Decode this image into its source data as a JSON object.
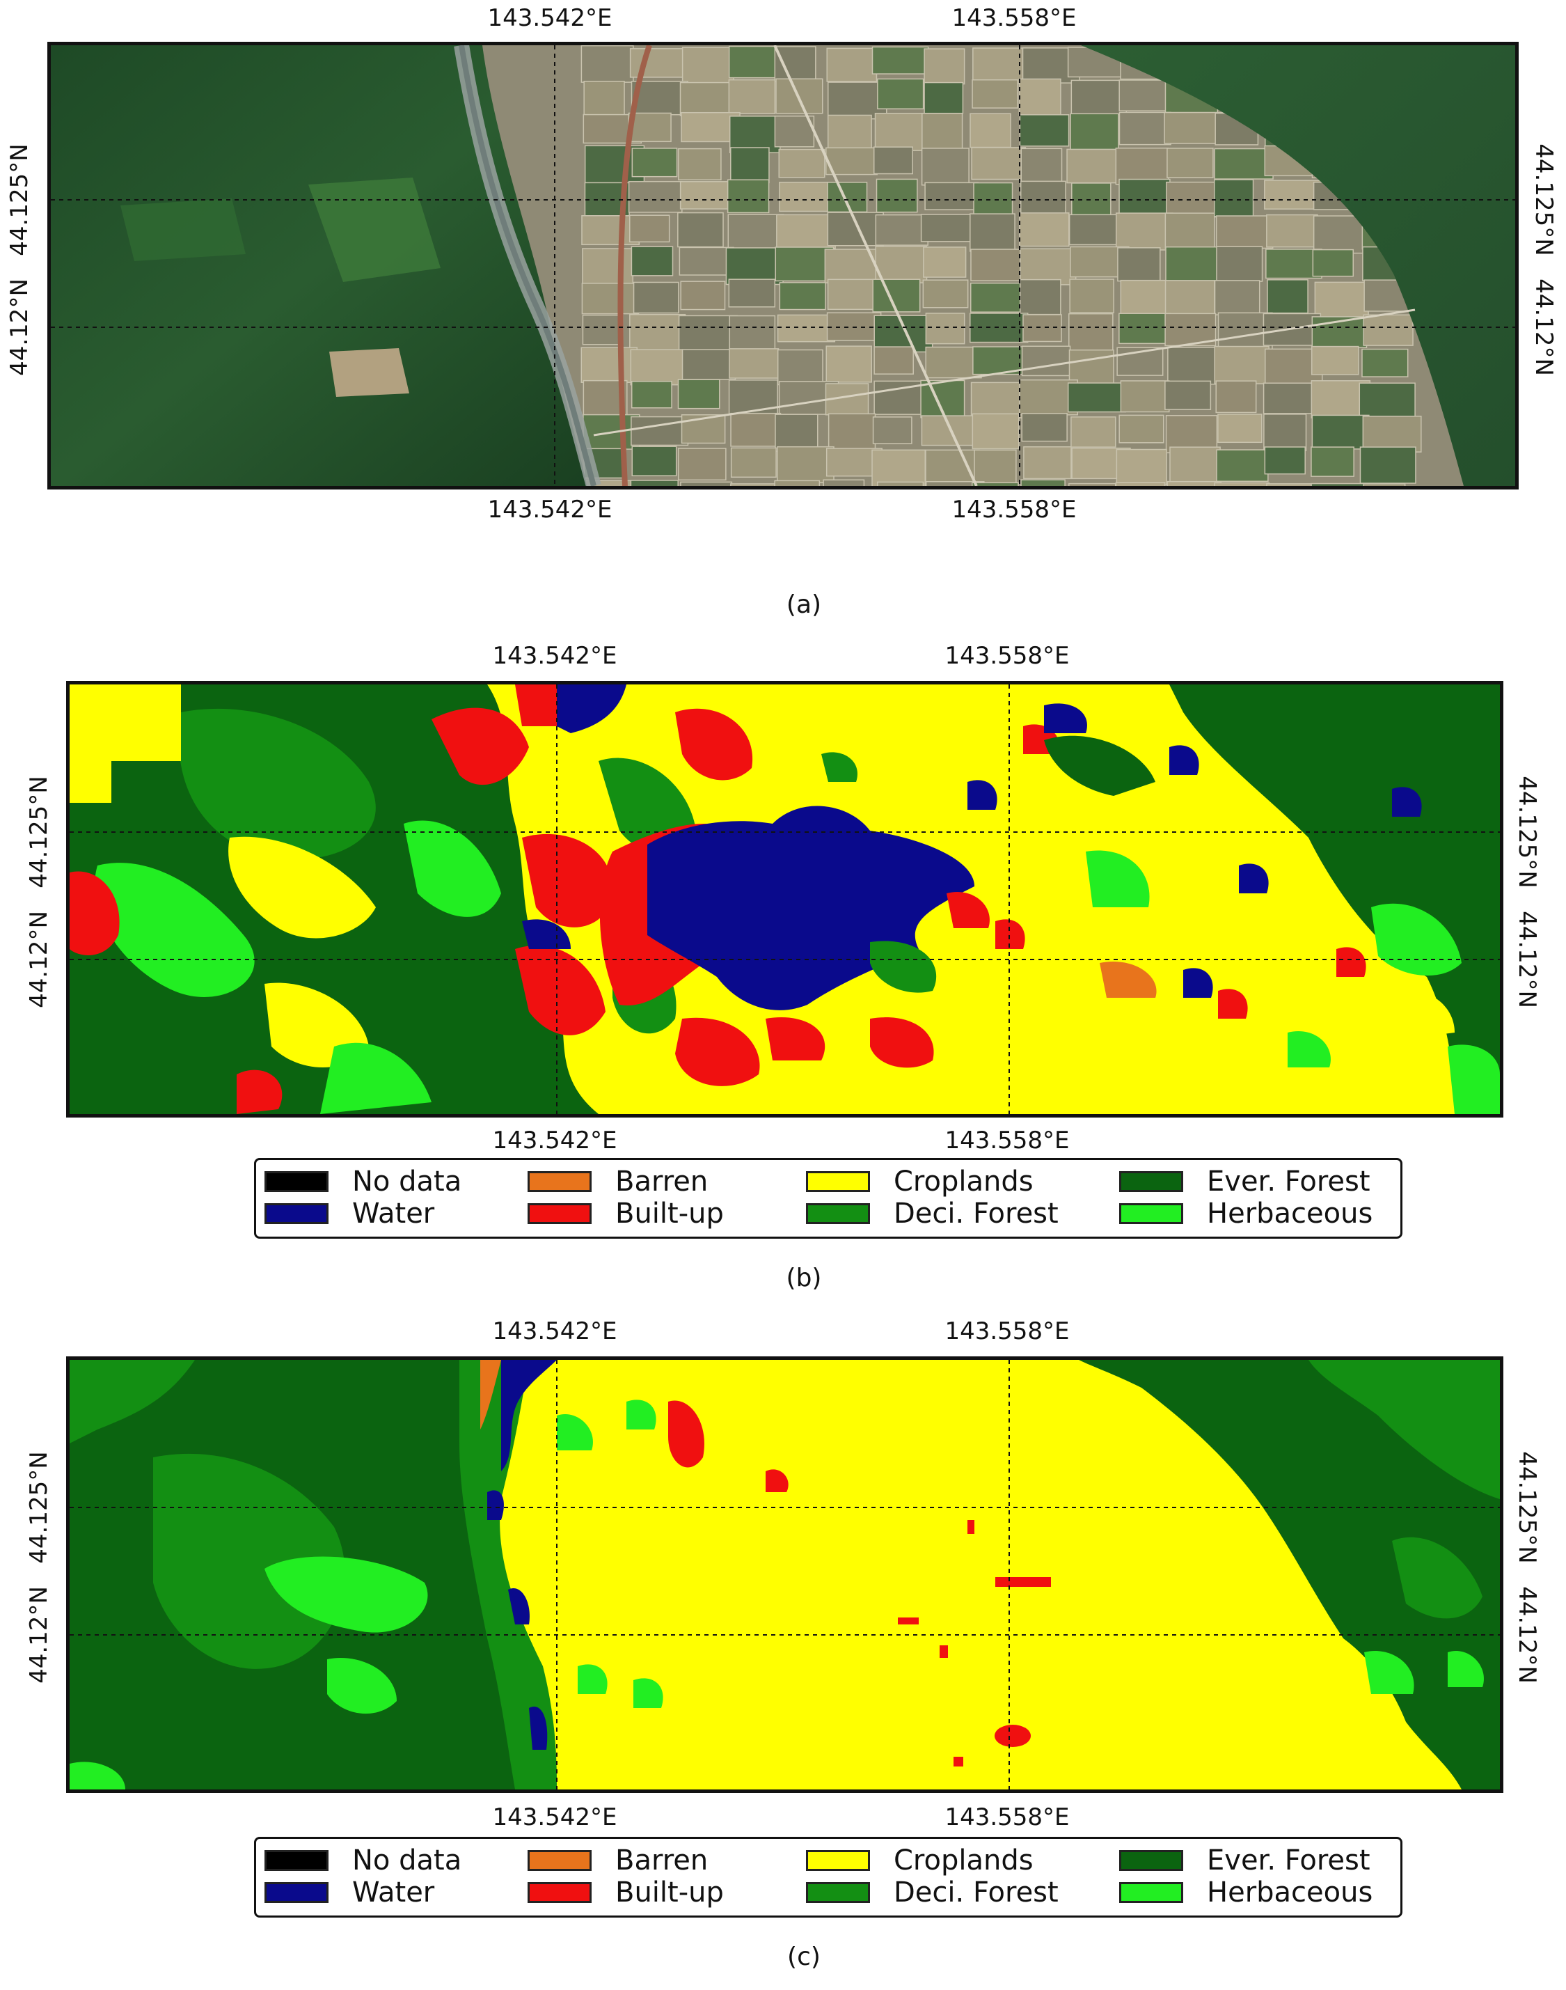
{
  "ticks": {
    "lon": [
      "143.542°E",
      "143.558°E"
    ],
    "lat": [
      "44.125°N",
      "44.12°N"
    ]
  },
  "panels": [
    {
      "id": "a",
      "caption": "(a)",
      "kind": "satellite"
    },
    {
      "id": "b",
      "caption": "(b)",
      "kind": "classification"
    },
    {
      "id": "c",
      "caption": "(c)",
      "kind": "classification"
    }
  ],
  "legend": [
    {
      "label": "No data",
      "color": "#000000"
    },
    {
      "label": "Water",
      "color": "#0a0a8c"
    },
    {
      "label": "Barren",
      "color": "#e8741c"
    },
    {
      "label": "Built-up",
      "color": "#f01010"
    },
    {
      "label": "Croplands",
      "color": "#ffff00"
    },
    {
      "label": "Deci. Forest",
      "color": "#138f13"
    },
    {
      "label": "Ever. Forest",
      "color": "#0b6410"
    },
    {
      "label": "Herbaceous",
      "color": "#22ee22"
    }
  ]
}
